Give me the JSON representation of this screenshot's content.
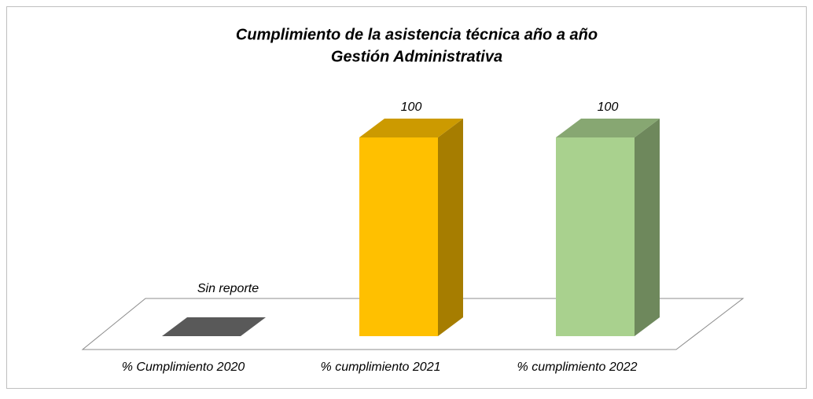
{
  "chart_data": {
    "type": "bar3d",
    "title": [
      "Cumplimiento de la asistencia técnica año a año",
      "Gestión Administrativa"
    ],
    "categories": [
      "% Cumplimiento 2020",
      "% cumplimiento 2021",
      "% cumplimiento 2022"
    ],
    "series": [
      {
        "name": null,
        "colors": [
          "#595959",
          "#ffc000",
          "#a9d18e"
        ],
        "values": [
          0,
          100,
          100
        ]
      }
    ],
    "annotations": [
      "Sin reporte"
    ]
  }
}
